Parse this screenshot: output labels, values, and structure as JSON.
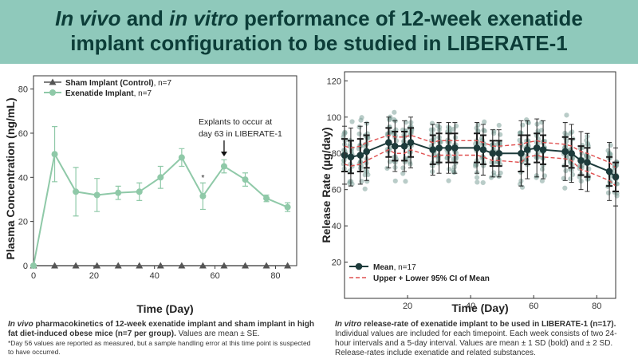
{
  "title": {
    "line1_italic1": "In vivo",
    "line1_mid": " and ",
    "line1_italic2": "in vitro",
    "line1_rest": " performance of 12-week exenatide",
    "line2": "implant configuration to be studied in LIBERATE-1"
  },
  "colors": {
    "banner": "#8fc9bb",
    "banner_text": "#0c3d38",
    "exenatide": "#8fc9a8",
    "sham": "#555555",
    "mean_line": "#1d3b3b",
    "ci_line": "#e05050",
    "individual": "#7fa39a"
  },
  "chart_data": [
    {
      "type": "line",
      "xlabel": "Time (Day)",
      "ylabel": "Plasma Concentration (ng/mL)",
      "xlim": [
        0,
        87
      ],
      "ylim": [
        0,
        86
      ],
      "xticks": [
        0,
        20,
        40,
        60,
        80
      ],
      "yticks": [
        0,
        20,
        40,
        60,
        80
      ],
      "legend_position": "top-left",
      "series": [
        {
          "name": "Sham Implant (Control)",
          "n_label": "n=7",
          "marker": "triangle",
          "x": [
            0,
            7,
            14,
            21,
            28,
            35,
            42,
            49,
            56,
            63,
            70,
            77,
            84
          ],
          "y": [
            0,
            0,
            0,
            0,
            0,
            0,
            0,
            0,
            0,
            0,
            0,
            0,
            0
          ],
          "err": [
            0,
            0,
            0,
            0,
            0,
            0,
            0,
            0,
            0,
            0,
            0,
            0,
            0
          ]
        },
        {
          "name": "Exenatide Implant",
          "n_label": "n=7",
          "marker": "circle",
          "x": [
            0,
            7,
            14,
            21,
            28,
            35,
            42,
            49,
            56,
            63,
            70,
            77,
            84
          ],
          "y": [
            0,
            50.5,
            33.5,
            32,
            33,
            33.5,
            40,
            49,
            31.5,
            45,
            39,
            30.5,
            26.5
          ],
          "err": [
            0,
            12.5,
            11,
            7.5,
            3,
            4,
            5,
            4,
            6,
            3,
            3,
            1.5,
            2
          ]
        }
      ],
      "annotations": [
        {
          "text_line1": "Explants to occur at",
          "text_line2": "day 63 in LIBERATE-1",
          "x": 63,
          "arrow": true
        },
        {
          "text": "*",
          "x": 56
        }
      ]
    },
    {
      "type": "scatter",
      "xlabel": "Time (Day)",
      "ylabel": "Release Rate (µg/day)",
      "xlim": [
        0,
        86
      ],
      "ylim": [
        0,
        125
      ],
      "xticks": [
        20,
        40,
        60,
        80
      ],
      "yticks": [
        0,
        20,
        40,
        60,
        80,
        100,
        120
      ],
      "legend_position": "bottom-left",
      "series": [
        {
          "name": "Mean",
          "n_label": "n=17",
          "x": [
            0,
            2,
            5,
            7,
            14,
            16,
            19,
            21,
            28,
            30,
            33,
            35,
            42,
            44,
            47,
            49,
            56,
            58,
            61,
            63,
            70,
            72,
            75,
            77,
            84,
            86
          ],
          "y": [
            79,
            78,
            79,
            81,
            86,
            84,
            84,
            86,
            82,
            83,
            83,
            83,
            83,
            82,
            80,
            80,
            80,
            82,
            83,
            82,
            81,
            80,
            76,
            75,
            70,
            67
          ],
          "sd1": [
            9,
            9,
            9,
            9,
            8,
            8,
            8,
            8,
            8,
            8,
            8,
            8,
            8,
            8,
            7,
            7,
            10,
            8,
            8,
            8,
            8,
            8,
            8,
            8,
            8,
            8
          ],
          "sd2": [
            16,
            16,
            16,
            16,
            14,
            14,
            14,
            14,
            14,
            14,
            14,
            14,
            14,
            14,
            13,
            13,
            18,
            16,
            16,
            16,
            16,
            16,
            16,
            16,
            16,
            16
          ]
        },
        {
          "name": "Upper + Lower 95% CI of Mean",
          "upper": [
            84,
            83,
            84,
            86,
            90,
            89,
            89,
            90,
            86,
            87,
            87,
            87,
            87,
            86,
            84,
            84,
            85,
            86,
            87,
            86,
            85,
            84,
            81,
            80,
            75,
            72
          ],
          "lower": [
            74,
            73,
            74,
            76,
            82,
            80,
            80,
            82,
            78,
            79,
            79,
            79,
            79,
            78,
            76,
            76,
            75,
            78,
            79,
            78,
            77,
            76,
            71,
            70,
            65,
            62
          ]
        }
      ]
    }
  ],
  "captions": {
    "left_italic": "In vivo",
    "left_bold": " pharmacokinetics of 12-week exenatide implant and sham implant in high fat diet-induced obese mice (n=7 per group).",
    "left_rest": " Values are mean ± SE.",
    "left_note": "*Day 56 values are reported as measured, but a sample handling error at this time point is suspected to have occurred.",
    "right_italic": "In vitro",
    "right_bold": " release-rate of exenatide implant to be used in LIBERATE-1 (n=17).",
    "right_rest": " Individual values are included for each timepoint. Each week consists of two 24-hour intervals and a 5-day interval. Values are mean ± 1 SD (bold) and ± 2 SD. Release-rates include exenatide and related substances."
  }
}
